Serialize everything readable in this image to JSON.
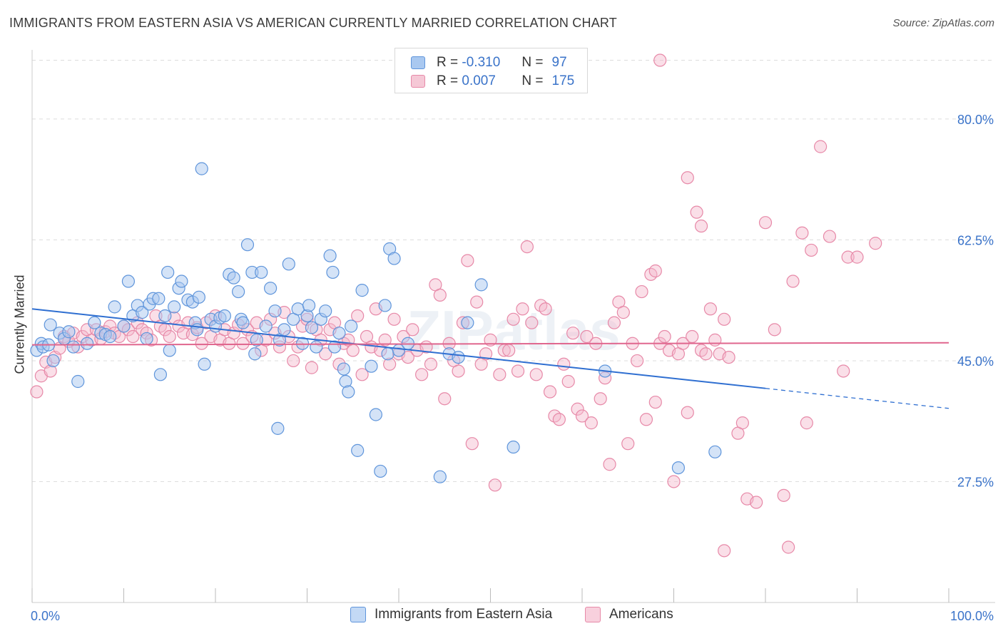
{
  "header": {
    "title": "IMMIGRANTS FROM EASTERN ASIA VS AMERICAN CURRENTLY MARRIED CORRELATION CHART",
    "source": "Source: ZipAtlas.com"
  },
  "watermark": "ZIPatlas",
  "legend": {
    "rows": [
      {
        "r_label": "R =",
        "r_value": "-0.310",
        "n_label": "N =",
        "n_value": "97"
      },
      {
        "r_label": "R =",
        "r_value": "0.007",
        "n_label": "N =",
        "n_value": "175"
      }
    ]
  },
  "bottom_legend": {
    "items": [
      "Immigrants from Eastern Asia",
      "Americans"
    ]
  },
  "colors": {
    "blue_fill": "#a9c8f0",
    "blue_stroke": "#5f95db",
    "blue_line": "#2f6fd1",
    "pink_fill": "#f5b8cb",
    "pink_stroke": "#e789a8",
    "pink_line": "#e0668e",
    "tick_text": "#3a73c9",
    "grid": "#dddddd"
  },
  "chart_data": {
    "type": "scatter",
    "title": "IMMIGRANTS FROM EASTERN ASIA VS AMERICAN CURRENTLY MARRIED CORRELATION CHART",
    "xlabel": "",
    "ylabel": "Currently Married",
    "xlim": [
      0,
      100
    ],
    "ylim": [
      10,
      90
    ],
    "x_tick_labels": [
      "0.0%",
      "100.0%"
    ],
    "y_ticks": [
      27.5,
      45.0,
      62.5,
      80.0
    ],
    "y_tick_labels": [
      "27.5%",
      "45.0%",
      "62.5%",
      "80.0%"
    ],
    "grid": true,
    "legend_position": "top-center",
    "series": [
      {
        "name": "Immigrants from Eastern Asia",
        "color": "#a9c8f0",
        "trend": {
          "x": [
            0,
            80
          ],
          "y": [
            52.5,
            41.0
          ],
          "dashed_to": [
            100,
            38.1
          ]
        },
        "points": [
          [
            0.5,
            46.5
          ],
          [
            1.0,
            47.5
          ],
          [
            1.2,
            47.0
          ],
          [
            1.8,
            47.3
          ],
          [
            2.0,
            50.2
          ],
          [
            2.3,
            45.0
          ],
          [
            3.0,
            49.0
          ],
          [
            3.5,
            48.2
          ],
          [
            4.0,
            49.2
          ],
          [
            4.5,
            47.0
          ],
          [
            5.0,
            42.0
          ],
          [
            6.0,
            47.5
          ],
          [
            6.8,
            50.5
          ],
          [
            7.5,
            49.0
          ],
          [
            8.0,
            48.8
          ],
          [
            8.5,
            48.5
          ],
          [
            9.0,
            52.8
          ],
          [
            10.0,
            50.0
          ],
          [
            10.5,
            56.5
          ],
          [
            11.0,
            51.5
          ],
          [
            11.5,
            53.0
          ],
          [
            12.0,
            52.0
          ],
          [
            12.5,
            48.2
          ],
          [
            12.8,
            53.2
          ],
          [
            13.2,
            54.0
          ],
          [
            13.8,
            54.0
          ],
          [
            14.0,
            43.0
          ],
          [
            14.5,
            51.5
          ],
          [
            14.8,
            57.8
          ],
          [
            15.0,
            46.5
          ],
          [
            15.5,
            52.8
          ],
          [
            16.0,
            55.5
          ],
          [
            16.3,
            56.5
          ],
          [
            17.0,
            53.8
          ],
          [
            17.5,
            53.5
          ],
          [
            17.8,
            50.5
          ],
          [
            18.0,
            49.5
          ],
          [
            18.2,
            54.2
          ],
          [
            18.5,
            72.8
          ],
          [
            18.8,
            44.5
          ],
          [
            19.5,
            51.0
          ],
          [
            20.0,
            50.0
          ],
          [
            20.5,
            51.2
          ],
          [
            21.0,
            51.5
          ],
          [
            21.5,
            57.5
          ],
          [
            22.0,
            57.0
          ],
          [
            22.5,
            55.0
          ],
          [
            22.8,
            51.0
          ],
          [
            23.0,
            50.5
          ],
          [
            23.5,
            61.8
          ],
          [
            24.0,
            57.8
          ],
          [
            24.3,
            46.0
          ],
          [
            24.5,
            48.0
          ],
          [
            25.0,
            57.8
          ],
          [
            25.5,
            50.0
          ],
          [
            26.0,
            55.5
          ],
          [
            26.5,
            52.2
          ],
          [
            26.8,
            35.2
          ],
          [
            27.0,
            48.0
          ],
          [
            27.5,
            49.5
          ],
          [
            28.0,
            59.0
          ],
          [
            28.5,
            51.0
          ],
          [
            29.0,
            52.5
          ],
          [
            29.5,
            47.5
          ],
          [
            30.0,
            51.5
          ],
          [
            30.2,
            53.0
          ],
          [
            30.5,
            49.8
          ],
          [
            31.0,
            47.0
          ],
          [
            31.5,
            51.0
          ],
          [
            32.0,
            52.2
          ],
          [
            32.5,
            60.2
          ],
          [
            32.8,
            57.8
          ],
          [
            33.0,
            47.0
          ],
          [
            33.5,
            49.0
          ],
          [
            34.0,
            43.8
          ],
          [
            34.2,
            42.0
          ],
          [
            34.5,
            40.5
          ],
          [
            34.8,
            50.0
          ],
          [
            35.5,
            32.0
          ],
          [
            36.0,
            55.2
          ],
          [
            37.0,
            44.2
          ],
          [
            37.5,
            37.2
          ],
          [
            38.0,
            29.0
          ],
          [
            38.5,
            53.0
          ],
          [
            38.8,
            46.0
          ],
          [
            39.0,
            61.2
          ],
          [
            39.5,
            59.8
          ],
          [
            40.0,
            46.5
          ],
          [
            41.0,
            47.5
          ],
          [
            44.5,
            28.2
          ],
          [
            45.5,
            46.0
          ],
          [
            46.5,
            45.5
          ],
          [
            47.5,
            50.5
          ],
          [
            49.0,
            56.0
          ],
          [
            52.5,
            32.5
          ],
          [
            62.5,
            43.5
          ],
          [
            70.5,
            29.5
          ],
          [
            74.5,
            31.8
          ]
        ]
      },
      {
        "name": "Americans",
        "color": "#f5b8cb",
        "trend": {
          "x": [
            0,
            100
          ],
          "y": [
            47.3,
            47.6
          ]
        },
        "points": [
          [
            0.5,
            40.5
          ],
          [
            1.0,
            42.8
          ],
          [
            1.5,
            44.8
          ],
          [
            2.0,
            43.5
          ],
          [
            2.5,
            45.5
          ],
          [
            3.0,
            46.8
          ],
          [
            3.5,
            48.5
          ],
          [
            4.0,
            47.8
          ],
          [
            4.5,
            49.0
          ],
          [
            5.0,
            47.0
          ],
          [
            5.5,
            48.5
          ],
          [
            6.0,
            49.5
          ],
          [
            6.5,
            48.0
          ],
          [
            7.0,
            49.5
          ],
          [
            7.5,
            48.2
          ],
          [
            8.0,
            49.2
          ],
          [
            8.5,
            50.0
          ],
          [
            9.0,
            49.0
          ],
          [
            9.5,
            48.5
          ],
          [
            10.0,
            50.0
          ],
          [
            10.5,
            49.5
          ],
          [
            11.0,
            48.5
          ],
          [
            11.5,
            50.5
          ],
          [
            12.0,
            49.5
          ],
          [
            12.5,
            49.0
          ],
          [
            13.0,
            48.0
          ],
          [
            13.5,
            51.5
          ],
          [
            14.0,
            50.0
          ],
          [
            14.5,
            49.5
          ],
          [
            15.0,
            48.5
          ],
          [
            15.5,
            51.2
          ],
          [
            16.0,
            50.0
          ],
          [
            16.5,
            49.0
          ],
          [
            17.0,
            50.5
          ],
          [
            17.5,
            48.8
          ],
          [
            18.0,
            49.8
          ],
          [
            18.5,
            47.5
          ],
          [
            19.0,
            50.5
          ],
          [
            19.5,
            48.5
          ],
          [
            20.0,
            51.5
          ],
          [
            20.5,
            48.0
          ],
          [
            21.0,
            49.5
          ],
          [
            21.5,
            47.5
          ],
          [
            22.0,
            49.0
          ],
          [
            22.5,
            50.2
          ],
          [
            23.0,
            47.5
          ],
          [
            23.5,
            49.5
          ],
          [
            24.0,
            48.5
          ],
          [
            24.5,
            50.5
          ],
          [
            25.0,
            46.5
          ],
          [
            25.5,
            48.0
          ],
          [
            26.0,
            51.0
          ],
          [
            26.5,
            49.0
          ],
          [
            27.0,
            47.0
          ],
          [
            27.5,
            52.0
          ],
          [
            28.0,
            48.5
          ],
          [
            28.5,
            45.0
          ],
          [
            29.0,
            47.0
          ],
          [
            29.5,
            50.0
          ],
          [
            30.0,
            51.0
          ],
          [
            30.5,
            44.0
          ],
          [
            31.0,
            49.5
          ],
          [
            31.5,
            48.0
          ],
          [
            32.0,
            46.0
          ],
          [
            32.5,
            49.5
          ],
          [
            33.0,
            50.5
          ],
          [
            33.5,
            44.5
          ],
          [
            34.0,
            47.5
          ],
          [
            34.5,
            48.0
          ],
          [
            35.0,
            46.5
          ],
          [
            35.5,
            51.5
          ],
          [
            36.0,
            43.0
          ],
          [
            36.5,
            48.5
          ],
          [
            37.0,
            47.0
          ],
          [
            37.5,
            52.5
          ],
          [
            38.0,
            46.5
          ],
          [
            38.5,
            48.0
          ],
          [
            39.0,
            44.5
          ],
          [
            39.5,
            51.0
          ],
          [
            40.0,
            46.0
          ],
          [
            40.5,
            48.5
          ],
          [
            41.0,
            45.5
          ],
          [
            41.5,
            49.5
          ],
          [
            42.0,
            46.5
          ],
          [
            42.5,
            43.0
          ],
          [
            43.0,
            47.0
          ],
          [
            43.5,
            44.5
          ],
          [
            44.0,
            56.0
          ],
          [
            44.5,
            54.5
          ],
          [
            45.0,
            39.5
          ],
          [
            45.5,
            47.5
          ],
          [
            46.0,
            45.0
          ],
          [
            46.5,
            43.5
          ],
          [
            47.0,
            50.5
          ],
          [
            47.5,
            59.5
          ],
          [
            48.0,
            33.0
          ],
          [
            48.5,
            53.5
          ],
          [
            49.0,
            44.5
          ],
          [
            49.5,
            46.0
          ],
          [
            50.0,
            48.0
          ],
          [
            50.5,
            27.0
          ],
          [
            51.0,
            43.0
          ],
          [
            51.5,
            46.5
          ],
          [
            52.0,
            46.5
          ],
          [
            52.5,
            51.0
          ],
          [
            53.0,
            43.5
          ],
          [
            53.5,
            52.5
          ],
          [
            54.0,
            61.5
          ],
          [
            54.5,
            50.5
          ],
          [
            55.0,
            43.0
          ],
          [
            55.5,
            53.0
          ],
          [
            56.0,
            52.5
          ],
          [
            56.5,
            40.5
          ],
          [
            57.0,
            37.0
          ],
          [
            57.5,
            36.5
          ],
          [
            58.0,
            44.5
          ],
          [
            58.5,
            42.0
          ],
          [
            59.0,
            49.0
          ],
          [
            59.5,
            38.0
          ],
          [
            60.0,
            37.0
          ],
          [
            60.5,
            48.5
          ],
          [
            61.0,
            36.0
          ],
          [
            61.5,
            47.5
          ],
          [
            62.0,
            39.5
          ],
          [
            62.5,
            42.5
          ],
          [
            63.0,
            30.0
          ],
          [
            63.5,
            50.5
          ],
          [
            64.0,
            53.5
          ],
          [
            64.5,
            52.0
          ],
          [
            65.0,
            33.0
          ],
          [
            65.5,
            47.5
          ],
          [
            66.0,
            45.0
          ],
          [
            66.5,
            55.0
          ],
          [
            67.0,
            36.5
          ],
          [
            67.5,
            57.5
          ],
          [
            68.0,
            58.0
          ],
          [
            68.5,
            47.5
          ],
          [
            69.0,
            48.5
          ],
          [
            69.5,
            46.5
          ],
          [
            70.0,
            27.5
          ],
          [
            70.5,
            46.0
          ],
          [
            71.0,
            47.5
          ],
          [
            71.5,
            37.5
          ],
          [
            72.0,
            48.5
          ],
          [
            72.5,
            66.5
          ],
          [
            73.0,
            46.5
          ],
          [
            73.5,
            46.0
          ],
          [
            74.0,
            52.5
          ],
          [
            74.5,
            48.0
          ],
          [
            75.0,
            46.0
          ],
          [
            76.0,
            45.5
          ],
          [
            77.0,
            34.5
          ],
          [
            77.5,
            36.0
          ],
          [
            78.0,
            25.0
          ],
          [
            79.0,
            24.5
          ],
          [
            80.0,
            65.0
          ],
          [
            81.0,
            49.5
          ],
          [
            82.0,
            25.5
          ],
          [
            83.0,
            56.5
          ],
          [
            84.0,
            63.5
          ],
          [
            84.5,
            36.0
          ],
          [
            85.0,
            61.0
          ],
          [
            86.0,
            76.0
          ],
          [
            87.0,
            63.0
          ],
          [
            88.5,
            43.5
          ],
          [
            89.0,
            60.0
          ],
          [
            90.0,
            60.0
          ],
          [
            92.0,
            62.0
          ],
          [
            75.5,
            17.5
          ],
          [
            82.5,
            18.0
          ],
          [
            71.5,
            71.5
          ],
          [
            68.5,
            88.5
          ],
          [
            75.5,
            51.0
          ],
          [
            73.0,
            64.5
          ],
          [
            68.0,
            39.0
          ]
        ]
      }
    ]
  }
}
